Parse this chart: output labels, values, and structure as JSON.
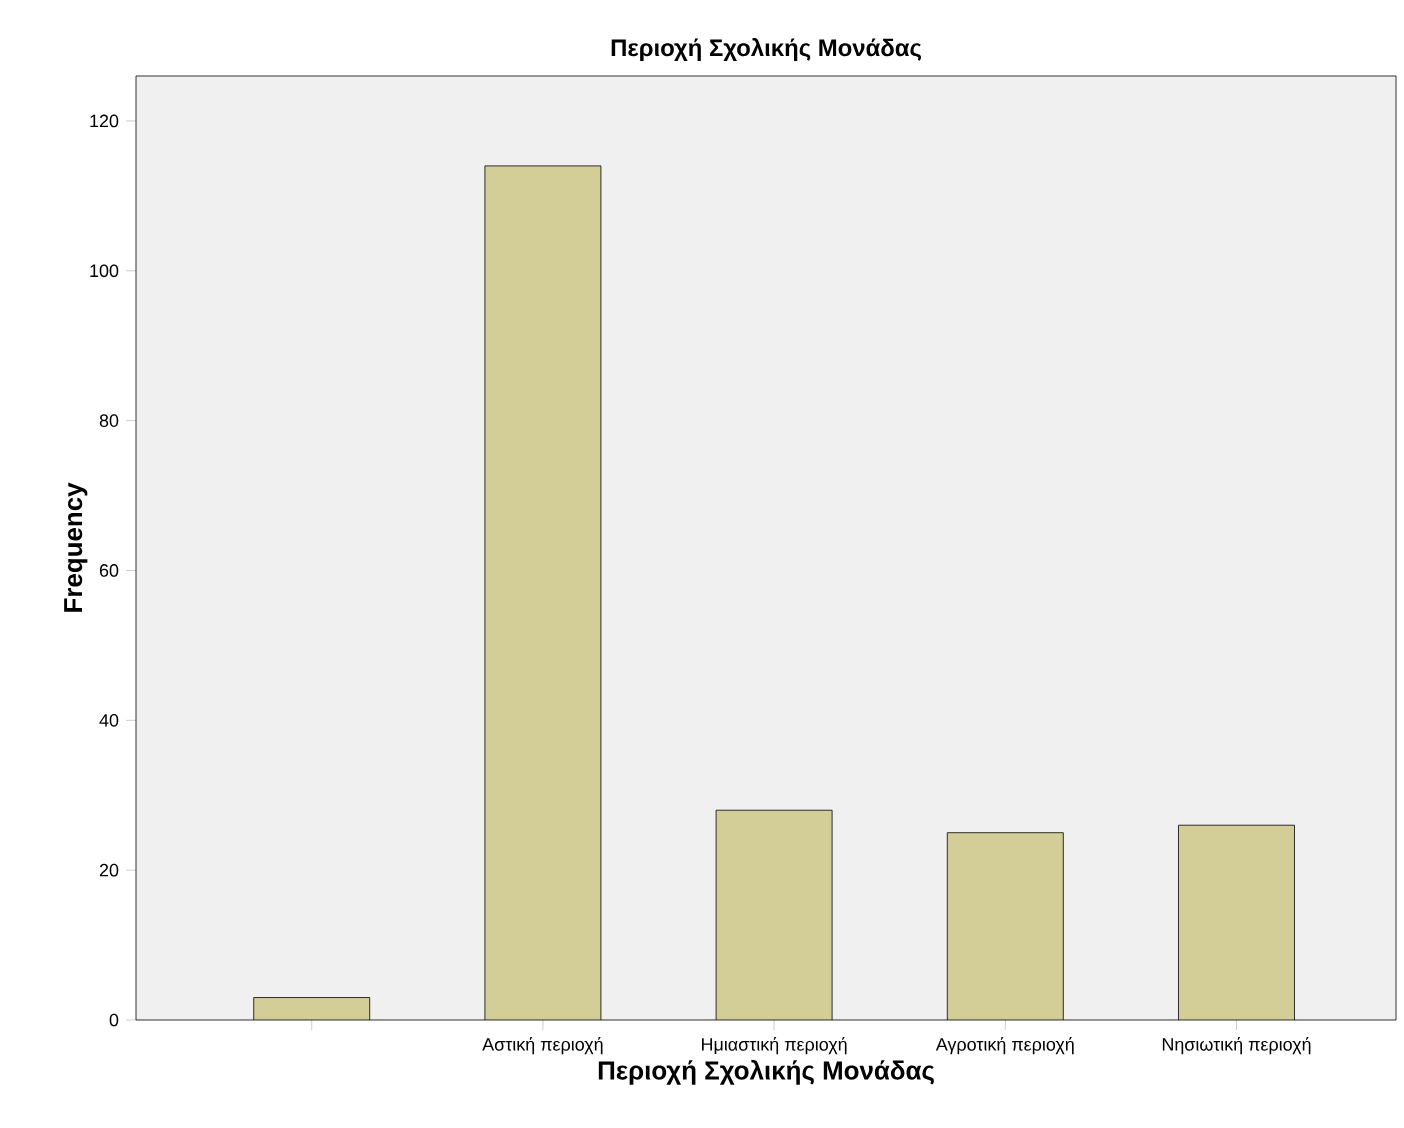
{
  "chart_data": {
    "type": "bar",
    "title": "Περιοχή Σχολικής Μονάδας",
    "xlabel": "Περιοχή Σχολικής Μονάδας",
    "ylabel": "Frequency",
    "categories": [
      null,
      "Αστική περιοχή",
      "Ημιαστική περιοχή",
      "Αγροτική περιοχή",
      "Νησιωτική περιοχή"
    ],
    "values": [
      3,
      114,
      28,
      25,
      26
    ],
    "color": "#d3ce97",
    "ylim": [
      0,
      126
    ],
    "yticks": [
      0,
      20,
      40,
      60,
      80,
      100,
      120
    ]
  }
}
